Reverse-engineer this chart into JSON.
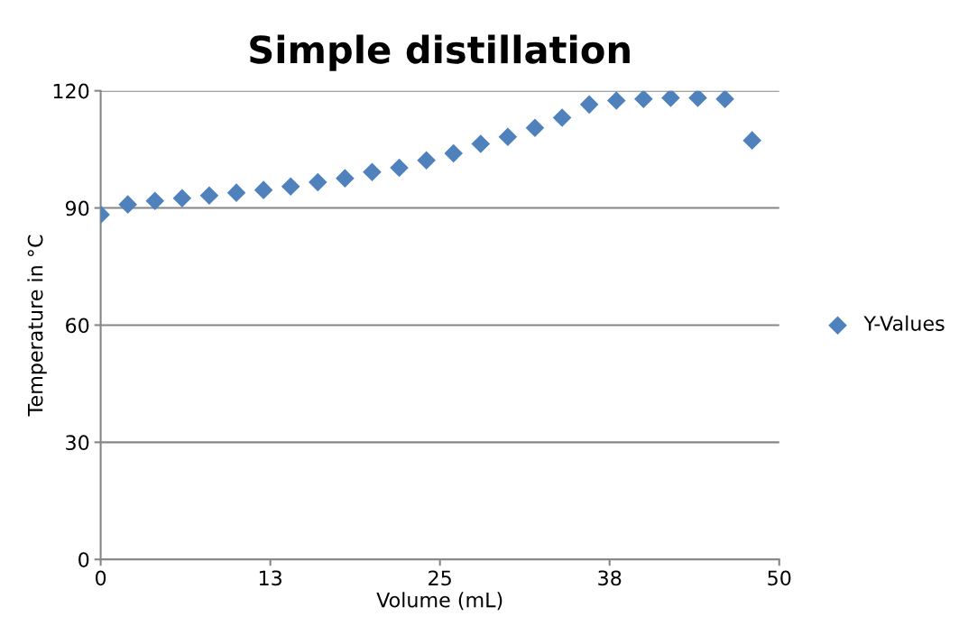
{
  "chart_data": {
    "type": "scatter",
    "title": "Simple distillation",
    "xlabel": "Volume (mL)",
    "ylabel": "Temperature in °C",
    "x": [
      0,
      2,
      4,
      6,
      8,
      10,
      12,
      14,
      16,
      18,
      20,
      22,
      24,
      26,
      28,
      30,
      32,
      34,
      36,
      38,
      40,
      42,
      44,
      46,
      48
    ],
    "series": [
      {
        "name": "Y-Values",
        "color": "#4f81bd",
        "values": [
          88.3,
          90.9,
          91.8,
          92.5,
          93.2,
          93.9,
          94.6,
          95.5,
          96.6,
          97.6,
          99.2,
          100.3,
          102.2,
          104.0,
          106.4,
          108.2,
          110.5,
          113.1,
          116.5,
          117.5,
          117.9,
          118.2,
          118.2,
          117.9,
          107.3
        ]
      }
    ],
    "xlim": [
      0,
      50
    ],
    "xticks": [
      0,
      {
        "value": 12.5,
        "label": "13"
      },
      25,
      {
        "value": 37.5,
        "label": "38"
      },
      50
    ],
    "ylim": [
      0,
      120
    ],
    "yticks": [
      0,
      30,
      60,
      90,
      120
    ],
    "grid": "y",
    "legend": "right",
    "marker": "diamond"
  }
}
